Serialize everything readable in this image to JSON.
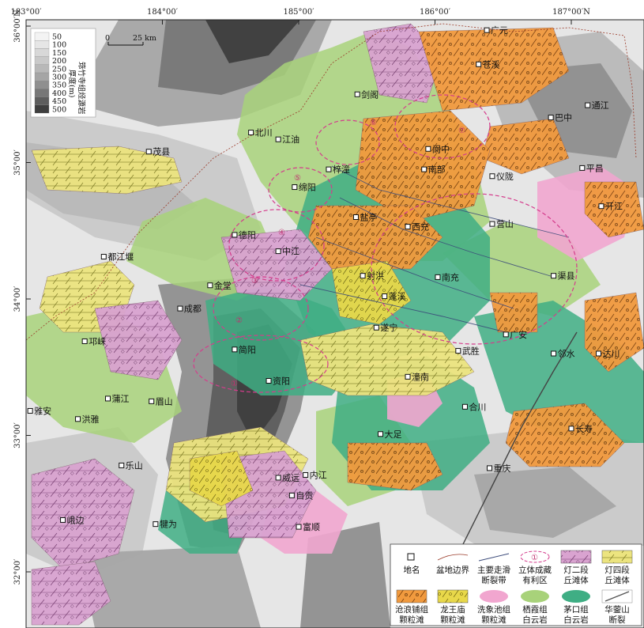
{
  "axes": {
    "top_labels": [
      "183°00′",
      "184°00′",
      "185°00′",
      "186°00′",
      "187°00′N"
    ],
    "left_labels": [
      "36°00′N",
      "35°00′",
      "34°00′",
      "33°00′",
      "32°00′"
    ]
  },
  "scale_bar": {
    "start": "0",
    "end": "25 km"
  },
  "thickness_legend": {
    "title_line1": "筇竹寺组烃源岩",
    "title_line2": "厚度(m)",
    "values": [
      "50",
      "100",
      "150",
      "200",
      "250",
      "300",
      "350",
      "400",
      "450",
      "500"
    ],
    "colors": [
      "#f3f3f3",
      "#e6e6e6",
      "#d8d8d8",
      "#c9c9c9",
      "#b8b8b8",
      "#a5a5a5",
      "#8f8f8f",
      "#777777",
      "#5d5d5d",
      "#3e3e3e"
    ]
  },
  "places": [
    {
      "name": "广元",
      "x": 186.38,
      "y": 35.97
    },
    {
      "name": "苍溪",
      "x": 186.32,
      "y": 35.72
    },
    {
      "name": "剑阁",
      "x": 185.43,
      "y": 35.5
    },
    {
      "name": "巴中",
      "x": 186.85,
      "y": 35.33
    },
    {
      "name": "通江",
      "x": 187.12,
      "y": 35.42
    },
    {
      "name": "北川",
      "x": 184.65,
      "y": 35.22
    },
    {
      "name": "江油",
      "x": 184.85,
      "y": 35.17
    },
    {
      "name": "茂县",
      "x": 183.9,
      "y": 35.08
    },
    {
      "name": "阆中",
      "x": 185.95,
      "y": 35.1
    },
    {
      "name": "梓潼",
      "x": 185.22,
      "y": 34.95
    },
    {
      "name": "南部",
      "x": 185.92,
      "y": 34.95
    },
    {
      "name": "仪陇",
      "x": 186.42,
      "y": 34.9
    },
    {
      "name": "平昌",
      "x": 187.08,
      "y": 34.96
    },
    {
      "name": "绵阳",
      "x": 184.97,
      "y": 34.82
    },
    {
      "name": "盐亭",
      "x": 185.42,
      "y": 34.6
    },
    {
      "name": "西充",
      "x": 185.8,
      "y": 34.53
    },
    {
      "name": "营山",
      "x": 186.42,
      "y": 34.55
    },
    {
      "name": "开江",
      "x": 187.22,
      "y": 34.68
    },
    {
      "name": "德阳",
      "x": 184.53,
      "y": 34.47
    },
    {
      "name": "中江",
      "x": 184.85,
      "y": 34.35
    },
    {
      "name": "南充",
      "x": 186.02,
      "y": 34.16
    },
    {
      "name": "都江堰",
      "x": 183.57,
      "y": 34.31
    },
    {
      "name": "射洪",
      "x": 185.47,
      "y": 34.17
    },
    {
      "name": "渠县",
      "x": 186.87,
      "y": 34.17
    },
    {
      "name": "金堂",
      "x": 184.35,
      "y": 34.1
    },
    {
      "name": "蓬溪",
      "x": 185.63,
      "y": 34.02
    },
    {
      "name": "成都",
      "x": 184.13,
      "y": 33.93
    },
    {
      "name": "遂宁",
      "x": 185.57,
      "y": 33.79
    },
    {
      "name": "广安",
      "x": 186.52,
      "y": 33.74
    },
    {
      "name": "邻水",
      "x": 186.87,
      "y": 33.6
    },
    {
      "name": "邛崃",
      "x": 183.43,
      "y": 33.69
    },
    {
      "name": "简阳",
      "x": 184.53,
      "y": 33.63
    },
    {
      "name": "武胜",
      "x": 186.17,
      "y": 33.62
    },
    {
      "name": "达川",
      "x": 187.2,
      "y": 33.6
    },
    {
      "name": "潼南",
      "x": 185.8,
      "y": 33.43
    },
    {
      "name": "资阳",
      "x": 184.78,
      "y": 33.4
    },
    {
      "name": "合川",
      "x": 186.22,
      "y": 33.21
    },
    {
      "name": "蒲江",
      "x": 183.6,
      "y": 33.27
    },
    {
      "name": "眉山",
      "x": 183.92,
      "y": 33.25
    },
    {
      "name": "雅安",
      "x": 183.03,
      "y": 33.18
    },
    {
      "name": "洪雅",
      "x": 183.38,
      "y": 33.12
    },
    {
      "name": "长寿",
      "x": 187.0,
      "y": 33.05
    },
    {
      "name": "大足",
      "x": 185.6,
      "y": 33.01
    },
    {
      "name": "乐山",
      "x": 183.7,
      "y": 32.78
    },
    {
      "name": "重庆",
      "x": 186.4,
      "y": 32.76
    },
    {
      "name": "威远",
      "x": 184.85,
      "y": 32.69
    },
    {
      "name": "内江",
      "x": 185.05,
      "y": 32.71
    },
    {
      "name": "自贡",
      "x": 184.95,
      "y": 32.56
    },
    {
      "name": "峨边",
      "x": 183.27,
      "y": 32.38
    },
    {
      "name": "犍为",
      "x": 183.95,
      "y": 32.35
    },
    {
      "name": "富顺",
      "x": 185.0,
      "y": 32.33
    }
  ],
  "zone_numbers": [
    "①",
    "②",
    "③",
    "④",
    "⑤",
    "⑥",
    "⑦"
  ],
  "legend": [
    {
      "key": "place",
      "line1": "地名",
      "line2": ""
    },
    {
      "key": "basin",
      "line1": "盆地边界",
      "line2": ""
    },
    {
      "key": "fault",
      "line1": "主要走滑",
      "line2": "断裂带"
    },
    {
      "key": "zone",
      "line1": "立体成藏",
      "line2": "有利区",
      "symbol": "①"
    },
    {
      "key": "dengying2",
      "line1": "灯二段",
      "line2": "丘滩体",
      "color": "#d9a3d0"
    },
    {
      "key": "dengying4",
      "line1": "灯四段",
      "line2": "丘滩体",
      "color": "#e8e07a"
    },
    {
      "key": "canglangpu",
      "line1": "沧浪铺组",
      "line2": "颗粒滩",
      "color": "#f19a3e"
    },
    {
      "key": "longwangmiao",
      "line1": "龙王庙",
      "line2": "颗粒滩",
      "color": "#e8d84a"
    },
    {
      "key": "xixiangchi",
      "line1": "洗象池组",
      "line2": "颗粒滩",
      "color": "#f1a6cf"
    },
    {
      "key": "qixia",
      "line1": "栖霞组",
      "line2": "白云岩",
      "color": "#a8d27a"
    },
    {
      "key": "maokou",
      "line1": "茅口组",
      "line2": "白云岩",
      "color": "#3fae84"
    },
    {
      "key": "huaying",
      "line1": "华蓥山",
      "line2": "断裂",
      "color": "#555555"
    }
  ]
}
